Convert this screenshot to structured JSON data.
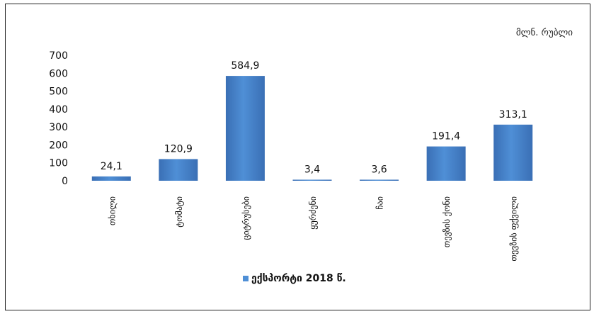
{
  "unit_label": "მლნ. რუბლი",
  "colors": {
    "bar": "#4f8fd6",
    "bar_dark": "#3a6fb5",
    "axis": "#222222"
  },
  "chart_data": {
    "type": "bar",
    "categories": [
      "თხილი",
      "ტომატი",
      "ციტრუსები",
      "ყურძენი",
      "ჩაი",
      "თევზის ქონი",
      "თევზის ფქვილი"
    ],
    "series": [
      {
        "name": "ექსპორტი 2018 წ.",
        "values": [
          24.1,
          120.9,
          584.9,
          3.4,
          3.6,
          191.4,
          313.1
        ]
      }
    ],
    "data_labels": [
      "24,1",
      "120,9",
      "584,9",
      "3,4",
      "3,6",
      "191,4",
      "313,1"
    ],
    "y_ticks": [
      "0",
      "100",
      "200",
      "300",
      "400",
      "500",
      "600",
      "700"
    ],
    "ylim": [
      0,
      700
    ],
    "legend_position": "bottom-center"
  }
}
